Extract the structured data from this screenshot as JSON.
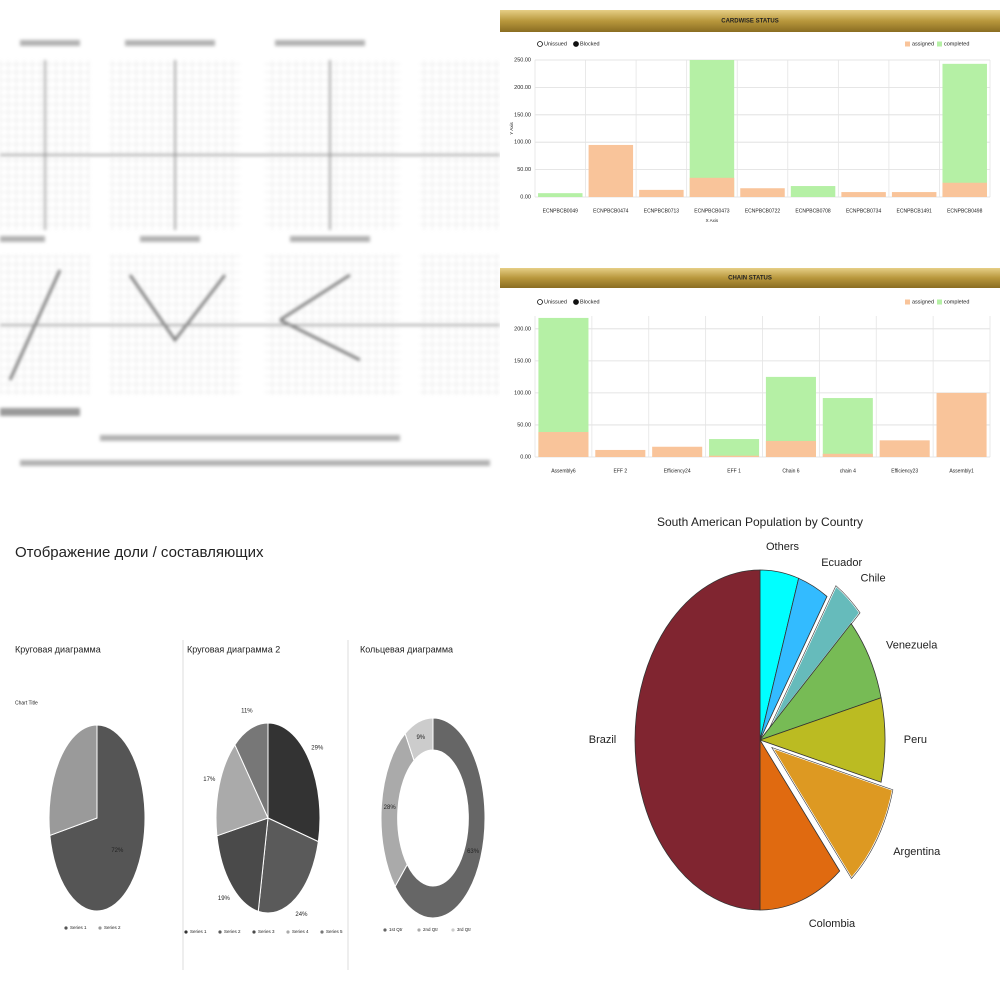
{
  "slide": {
    "title": "Отображение доли / составляющих"
  },
  "chart_data": [
    {
      "type": "bar",
      "title": "CARDWISE STATUS",
      "status_legend": [
        "Unissued",
        "Blocked"
      ],
      "categories": [
        "ECNPBCB0049",
        "ECNPBCB0474",
        "ECNPBCB0713",
        "ECNPBCB0473",
        "ECNPBCB0722",
        "ECNPBCB0708",
        "ECNPBCB0734",
        "ECNPBCB1491",
        "ECNPBCB0498"
      ],
      "series": [
        {
          "name": "assigned",
          "color": "#f9c49a",
          "values": [
            0,
            95,
            13,
            35,
            16,
            0,
            9,
            9,
            26
          ]
        },
        {
          "name": "completed",
          "color": "#b5f0a5",
          "values": [
            7,
            0,
            0,
            250,
            0,
            20,
            0,
            0,
            243
          ]
        }
      ],
      "ylim": [
        0,
        250
      ],
      "yticks": [
        {
          "value": 0,
          "label": "0.00"
        },
        {
          "value": 50,
          "label": "50.00"
        },
        {
          "value": 100,
          "label": "100.00"
        },
        {
          "value": 150,
          "label": "150.00"
        },
        {
          "value": 200,
          "label": "200.00"
        },
        {
          "value": 250,
          "label": "250.00"
        }
      ],
      "xlabel": "X Axis",
      "ylabel": "Y Axis",
      "grid": true
    },
    {
      "type": "bar",
      "title": "CHAIN STATUS",
      "status_legend": [
        "Unissued",
        "Blocked"
      ],
      "categories": [
        "Assembly6",
        "EFF 2",
        "Efficiency24",
        "EFF 1",
        "Chain 6",
        "chain 4",
        "Efficiency23",
        "Assembly1"
      ],
      "series": [
        {
          "name": "assigned",
          "color": "#f9c49a",
          "values": [
            39,
            11,
            16,
            2,
            25,
            5,
            26,
            100
          ]
        },
        {
          "name": "completed",
          "color": "#b5f0a5",
          "values": [
            217,
            0,
            0,
            28,
            125,
            92,
            0,
            0
          ]
        }
      ],
      "ylim": [
        0,
        220
      ],
      "yticks": [
        {
          "value": 0,
          "label": "0.00"
        },
        {
          "value": 50,
          "label": "50.00"
        },
        {
          "value": 100,
          "label": "100.00"
        },
        {
          "value": 150,
          "label": "150.00"
        },
        {
          "value": 200,
          "label": "200.00"
        }
      ],
      "grid": true
    },
    {
      "type": "pie",
      "title": "Круговая диаграмма",
      "subtitle": "Chart Title",
      "categories": [
        "Series 1",
        "Series 2"
      ],
      "values": [
        72,
        28
      ],
      "value_labels": [
        "72%",
        null
      ],
      "colors": [
        "#555555",
        "#9a9a9a"
      ]
    },
    {
      "type": "pie",
      "title": "Круговая диаграмма 2",
      "categories": [
        "Series 1",
        "Series 2",
        "Series 3",
        "Series 4",
        "Series 5"
      ],
      "values": [
        29,
        24,
        19,
        17,
        11
      ],
      "value_labels": [
        "29%",
        "24%",
        "19%",
        "17%",
        "11%"
      ],
      "colors": [
        "#333333",
        "#5a5a5a",
        "#4a4a4a",
        "#aaaaaa",
        "#777777"
      ]
    },
    {
      "type": "donut",
      "title": "Кольцевая диаграмма",
      "categories": [
        "1st Qtr",
        "2nd Qtr",
        "3rd Qtr"
      ],
      "values": [
        63,
        28,
        9
      ],
      "value_labels": [
        "63%",
        "28%",
        "9%"
      ],
      "colors": [
        "#666666",
        "#aaaaaa",
        "#cccccc"
      ]
    },
    {
      "type": "pie",
      "title": "South American Population by Country",
      "categories": [
        "Others",
        "Ecuador",
        "Chile",
        "Venezuela",
        "Peru",
        "Argentina",
        "Colombia",
        "Brazil"
      ],
      "values": [
        5,
        4,
        4,
        8,
        8,
        10,
        11,
        50
      ],
      "colors": [
        "#00ffff",
        "#33bbff",
        "#66bbbb",
        "#77bb55",
        "#bbbb22",
        "#dd9922",
        "#e06a10",
        "#802530"
      ],
      "explode": [
        false,
        false,
        true,
        false,
        false,
        true,
        false,
        false
      ]
    }
  ]
}
